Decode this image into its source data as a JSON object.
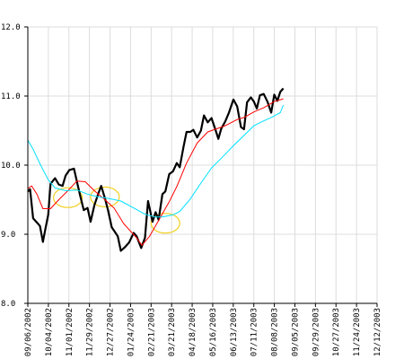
{
  "chart_data": {
    "type": "line",
    "title": "",
    "xlabel": "",
    "ylabel": "",
    "grid": true,
    "ylim": [
      8.0,
      12.0
    ],
    "y_ticks": [
      "8.0",
      "9.0",
      "10.0",
      "11.0",
      "12.0"
    ],
    "x_ticks": [
      "09/06/2002",
      "10/04/2002",
      "11/01/2002",
      "11/29/2002",
      "12/27/2002",
      "01/24/2003",
      "02/21/2003",
      "03/21/2003",
      "04/18/2003",
      "05/16/2003",
      "06/13/2003",
      "07/11/2003",
      "08/08/2003",
      "09/05/2003",
      "09/29/2003",
      "10/27/2003",
      "11/24/2003",
      "12/12/2003"
    ],
    "x_range": [
      "2002-09-06",
      "2003-12-12"
    ],
    "series": [
      {
        "name": "",
        "color": "#000000",
        "points": [
          [
            "2002-09-06",
            9.62
          ],
          [
            "2002-09-09",
            9.65
          ],
          [
            "2002-09-13",
            9.23
          ],
          [
            "2002-09-18",
            9.17
          ],
          [
            "2002-09-22",
            9.12
          ],
          [
            "2002-09-26",
            8.89
          ],
          [
            "2002-09-30",
            9.12
          ],
          [
            "2002-10-03",
            9.28
          ],
          [
            "2002-10-06",
            9.73
          ],
          [
            "2002-10-12",
            9.81
          ],
          [
            "2002-10-17",
            9.72
          ],
          [
            "2002-10-22",
            9.7
          ],
          [
            "2002-10-26",
            9.85
          ],
          [
            "2002-10-31",
            9.93
          ],
          [
            "2002-11-06",
            9.95
          ],
          [
            "2002-11-10",
            9.76
          ],
          [
            "2002-11-14",
            9.57
          ],
          [
            "2002-11-19",
            9.35
          ],
          [
            "2002-11-24",
            9.38
          ],
          [
            "2002-11-28",
            9.18
          ],
          [
            "2002-12-03",
            9.42
          ],
          [
            "2002-12-08",
            9.58
          ],
          [
            "2002-12-12",
            9.7
          ],
          [
            "2002-12-17",
            9.52
          ],
          [
            "2002-12-21",
            9.35
          ],
          [
            "2002-12-26",
            9.1
          ],
          [
            "2002-12-31",
            9.02
          ],
          [
            "2003-01-03",
            8.97
          ],
          [
            "2003-01-07",
            8.76
          ],
          [
            "2003-01-13",
            8.82
          ],
          [
            "2003-01-18",
            8.88
          ],
          [
            "2003-01-24",
            9.02
          ],
          [
            "2003-01-28",
            8.97
          ],
          [
            "2003-02-03",
            8.8
          ],
          [
            "2003-02-08",
            8.95
          ],
          [
            "2003-02-12",
            9.48
          ],
          [
            "2003-02-18",
            9.18
          ],
          [
            "2003-02-22",
            9.32
          ],
          [
            "2003-02-26",
            9.21
          ],
          [
            "2003-03-03",
            9.58
          ],
          [
            "2003-03-07",
            9.62
          ],
          [
            "2003-03-12",
            9.87
          ],
          [
            "2003-03-17",
            9.91
          ],
          [
            "2003-03-22",
            10.03
          ],
          [
            "2003-03-26",
            9.97
          ],
          [
            "2003-03-31",
            10.27
          ],
          [
            "2003-04-04",
            10.48
          ],
          [
            "2003-04-09",
            10.48
          ],
          [
            "2003-04-13",
            10.51
          ],
          [
            "2003-04-18",
            10.4
          ],
          [
            "2003-04-23",
            10.5
          ],
          [
            "2003-04-27",
            10.72
          ],
          [
            "2003-05-02",
            10.62
          ],
          [
            "2003-05-07",
            10.68
          ],
          [
            "2003-05-12",
            10.52
          ],
          [
            "2003-05-16",
            10.38
          ],
          [
            "2003-05-20",
            10.53
          ],
          [
            "2003-05-25",
            10.63
          ],
          [
            "2003-05-30",
            10.76
          ],
          [
            "2003-06-05",
            10.95
          ],
          [
            "2003-06-10",
            10.85
          ],
          [
            "2003-06-15",
            10.55
          ],
          [
            "2003-06-19",
            10.52
          ],
          [
            "2003-06-23",
            10.91
          ],
          [
            "2003-06-28",
            10.98
          ],
          [
            "2003-07-02",
            10.92
          ],
          [
            "2003-07-06",
            10.82
          ],
          [
            "2003-07-10",
            11.01
          ],
          [
            "2003-07-15",
            11.03
          ],
          [
            "2003-07-20",
            10.92
          ],
          [
            "2003-07-25",
            10.76
          ],
          [
            "2003-07-29",
            11.02
          ],
          [
            "2003-08-02",
            10.93
          ],
          [
            "2003-08-06",
            11.06
          ],
          [
            "2003-08-10",
            11.11
          ]
        ]
      },
      {
        "name": "",
        "color": "#ff0000",
        "points": [
          [
            "2002-09-06",
            9.66
          ],
          [
            "2002-09-11",
            9.7
          ],
          [
            "2002-09-18",
            9.58
          ],
          [
            "2002-09-26",
            9.37
          ],
          [
            "2002-10-06",
            9.37
          ],
          [
            "2002-10-17",
            9.5
          ],
          [
            "2002-10-29",
            9.63
          ],
          [
            "2002-11-10",
            9.77
          ],
          [
            "2002-11-21",
            9.76
          ],
          [
            "2002-12-03",
            9.63
          ],
          [
            "2002-12-17",
            9.5
          ],
          [
            "2002-12-29",
            9.38
          ],
          [
            "2003-01-11",
            9.15
          ],
          [
            "2003-01-27",
            8.96
          ],
          [
            "2003-02-04",
            8.84
          ],
          [
            "2003-02-14",
            8.97
          ],
          [
            "2003-02-26",
            9.2
          ],
          [
            "2003-03-12",
            9.47
          ],
          [
            "2003-03-22",
            9.69
          ],
          [
            "2003-04-04",
            10.03
          ],
          [
            "2003-04-18",
            10.32
          ],
          [
            "2003-05-02",
            10.48
          ],
          [
            "2003-05-12",
            10.52
          ],
          [
            "2003-05-25",
            10.57
          ],
          [
            "2003-06-10",
            10.66
          ],
          [
            "2003-06-19",
            10.69
          ],
          [
            "2003-07-02",
            10.77
          ],
          [
            "2003-07-15",
            10.83
          ],
          [
            "2003-07-29",
            10.92
          ],
          [
            "2003-08-10",
            10.96
          ]
        ]
      },
      {
        "name": "",
        "color": "#00e0ff",
        "points": [
          [
            "2002-09-06",
            10.36
          ],
          [
            "2002-09-13",
            10.23
          ],
          [
            "2002-09-22",
            10.02
          ],
          [
            "2002-10-03",
            9.79
          ],
          [
            "2002-10-12",
            9.67
          ],
          [
            "2002-10-26",
            9.63
          ],
          [
            "2002-11-10",
            9.64
          ],
          [
            "2002-11-24",
            9.58
          ],
          [
            "2002-12-08",
            9.54
          ],
          [
            "2002-12-21",
            9.52
          ],
          [
            "2003-01-07",
            9.48
          ],
          [
            "2003-01-24",
            9.38
          ],
          [
            "2003-02-08",
            9.29
          ],
          [
            "2003-02-22",
            9.25
          ],
          [
            "2003-03-03",
            9.25
          ],
          [
            "2003-03-17",
            9.28
          ],
          [
            "2003-03-26",
            9.33
          ],
          [
            "2003-04-09",
            9.51
          ],
          [
            "2003-04-23",
            9.74
          ],
          [
            "2003-05-07",
            9.96
          ],
          [
            "2003-05-20",
            10.1
          ],
          [
            "2003-06-05",
            10.28
          ],
          [
            "2003-06-19",
            10.43
          ],
          [
            "2003-07-02",
            10.57
          ],
          [
            "2003-07-15",
            10.64
          ],
          [
            "2003-07-25",
            10.69
          ],
          [
            "2003-08-06",
            10.76
          ],
          [
            "2003-08-10",
            10.87
          ]
        ]
      }
    ],
    "annotations": [
      {
        "shape": "ellipse",
        "color": "#f2d01e",
        "x": "2002-10-29",
        "y": 9.53
      },
      {
        "shape": "ellipse",
        "color": "#f2d01e",
        "x": "2002-12-17",
        "y": 9.54
      },
      {
        "shape": "ellipse",
        "color": "#f2d01e",
        "x": "2003-03-07",
        "y": 9.16
      }
    ],
    "colors": {
      "background": "#ffffff",
      "grid": "#dcdcdc",
      "axis": "#000000",
      "annotation": "#f2d01e"
    }
  }
}
